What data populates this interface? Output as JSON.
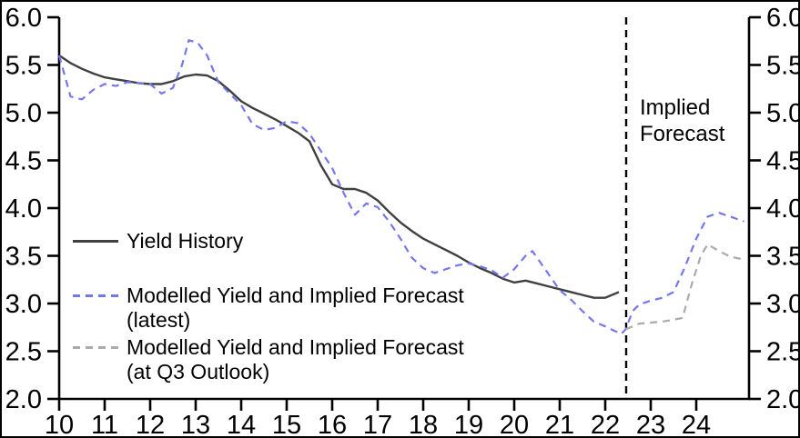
{
  "chart_data": {
    "type": "line",
    "title": "",
    "xlabel": "",
    "ylabel": "",
    "xlim": [
      10,
      25.16
    ],
    "ylim": [
      2.0,
      6.0
    ],
    "x_ticks": [
      10,
      11,
      12,
      13,
      14,
      15,
      16,
      17,
      18,
      19,
      20,
      21,
      22,
      23,
      24
    ],
    "y_ticks": [
      2.0,
      2.5,
      3.0,
      3.5,
      4.0,
      4.5,
      5.0,
      5.5,
      6.0
    ],
    "grid": false,
    "axis_color": "#000000",
    "dual_y_axis": true,
    "forecast_divider": {
      "x": 22.46,
      "style": "dashed",
      "color": "#000000"
    },
    "annotation": {
      "line1": "Implied",
      "line2": "Forecast"
    },
    "series": [
      {
        "name": "Yield History",
        "style": "solid",
        "color": "#404040",
        "x": [
          10,
          10.25,
          10.5,
          10.75,
          11,
          11.25,
          11.5,
          11.75,
          12,
          12.25,
          12.5,
          12.75,
          13,
          13.25,
          13.5,
          13.75,
          14,
          14.25,
          14.5,
          14.75,
          15,
          15.25,
          15.5,
          15.75,
          16,
          16.25,
          16.5,
          16.75,
          17,
          17.25,
          17.5,
          17.75,
          18,
          18.25,
          18.5,
          18.75,
          19,
          19.25,
          19.5,
          19.75,
          20,
          20.25,
          20.5,
          20.75,
          21,
          21.25,
          21.5,
          21.75,
          22,
          22.3
        ],
        "y": [
          5.6,
          5.52,
          5.46,
          5.41,
          5.37,
          5.35,
          5.33,
          5.31,
          5.3,
          5.3,
          5.33,
          5.38,
          5.4,
          5.39,
          5.33,
          5.23,
          5.12,
          5.05,
          4.99,
          4.93,
          4.86,
          4.79,
          4.7,
          4.45,
          4.25,
          4.2,
          4.2,
          4.16,
          4.08,
          3.96,
          3.85,
          3.76,
          3.68,
          3.62,
          3.56,
          3.5,
          3.43,
          3.37,
          3.32,
          3.26,
          3.22,
          3.24,
          3.21,
          3.18,
          3.15,
          3.12,
          3.09,
          3.06,
          3.06,
          3.12
        ]
      },
      {
        "name": "Modelled Yield and Implied Forecast (latest)",
        "style": "dashed",
        "color": "#7577ec",
        "x": [
          10,
          10.25,
          10.5,
          10.75,
          11,
          11.25,
          11.5,
          11.75,
          12,
          12.25,
          12.5,
          12.7,
          12.85,
          13.05,
          13.25,
          13.5,
          13.75,
          14,
          14.25,
          14.5,
          14.75,
          15,
          15.25,
          15.5,
          15.75,
          16,
          16.25,
          16.5,
          16.75,
          17,
          17.25,
          17.5,
          17.75,
          18,
          18.25,
          18.5,
          18.75,
          19,
          19.25,
          19.5,
          19.75,
          20,
          20.25,
          20.4,
          20.75,
          21,
          21.25,
          21.5,
          21.75,
          22,
          22.35,
          22.45,
          22.6,
          22.75,
          23,
          23.25,
          23.5,
          23.75,
          24,
          24.25,
          24.5,
          24.75,
          25.05
        ],
        "y": [
          5.6,
          5.17,
          5.14,
          5.24,
          5.3,
          5.28,
          5.32,
          5.31,
          5.3,
          5.2,
          5.26,
          5.5,
          5.76,
          5.73,
          5.6,
          5.32,
          5.2,
          5.08,
          4.88,
          4.82,
          4.84,
          4.91,
          4.89,
          4.78,
          4.6,
          4.42,
          4.16,
          3.93,
          4.05,
          4.01,
          3.86,
          3.68,
          3.48,
          3.37,
          3.32,
          3.36,
          3.4,
          3.42,
          3.39,
          3.35,
          3.27,
          3.36,
          3.5,
          3.55,
          3.31,
          3.14,
          3.04,
          2.92,
          2.81,
          2.76,
          2.68,
          2.73,
          2.92,
          2.99,
          3.03,
          3.06,
          3.12,
          3.38,
          3.68,
          3.91,
          3.95,
          3.91,
          3.86
        ]
      },
      {
        "name": "Modelled Yield and Implied Forecast (at Q3 Outlook)",
        "style": "dashed",
        "color": "#aaaaaa",
        "x": [
          22.45,
          22.75,
          23,
          23.25,
          23.5,
          23.7,
          23.9,
          24.1,
          24.25,
          24.5,
          24.75,
          25.05
        ],
        "y": [
          2.73,
          2.79,
          2.8,
          2.81,
          2.83,
          2.85,
          3.2,
          3.5,
          3.62,
          3.55,
          3.49,
          3.46
        ]
      }
    ],
    "legend": {
      "position": "inside-lower-left",
      "items": [
        {
          "label": "Yield History",
          "sublabel": "",
          "style": "solid",
          "color": "#404040"
        },
        {
          "label": "Modelled Yield and Implied Forecast",
          "sublabel": "(latest)",
          "style": "dashed",
          "color": "#7577ec"
        },
        {
          "label": "Modelled Yield and Implied Forecast",
          "sublabel": "(at Q3 Outlook)",
          "style": "dashed",
          "color": "#aaaaaa"
        }
      ]
    }
  }
}
